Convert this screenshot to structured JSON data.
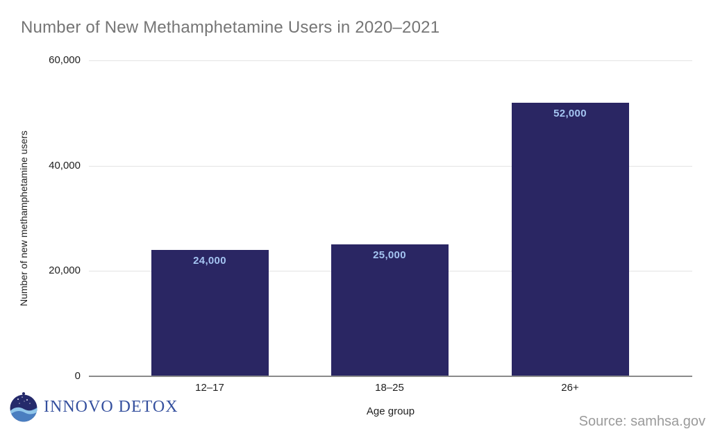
{
  "header": {
    "title": "Number of New Methamphetamine Users in 2020–2021"
  },
  "chart_data": {
    "type": "bar",
    "title": "Number of New Methamphetamine Users in 2020–2021",
    "categories": [
      "12–17",
      "18–25",
      "26+"
    ],
    "values": [
      24000,
      25000,
      52000
    ],
    "value_labels": [
      "24,000",
      "25,000",
      "52,000"
    ],
    "xlabel": "Age group",
    "ylabel": "Number of new methamphetamine users",
    "ylim": [
      0,
      60000
    ],
    "yticks": [
      0,
      20000,
      40000,
      60000
    ],
    "ytick_labels": [
      "0",
      "20,000",
      "40,000",
      "60,000"
    ],
    "grid": true,
    "legend": "none",
    "colors": {
      "bar": "#2a2663",
      "bar_value_label": "#a4c4f1",
      "gridline": "#e3e3e3",
      "axis_line": "#8a8a8a",
      "tick_text": "#1f1f1f",
      "title_text": "#757575"
    }
  },
  "footer": {
    "logo_text": "INNOVO DETOX",
    "logo_icon": "globe-wave-icon",
    "logo_color": "#35509e",
    "source_text": "Source: samhsa.gov"
  }
}
